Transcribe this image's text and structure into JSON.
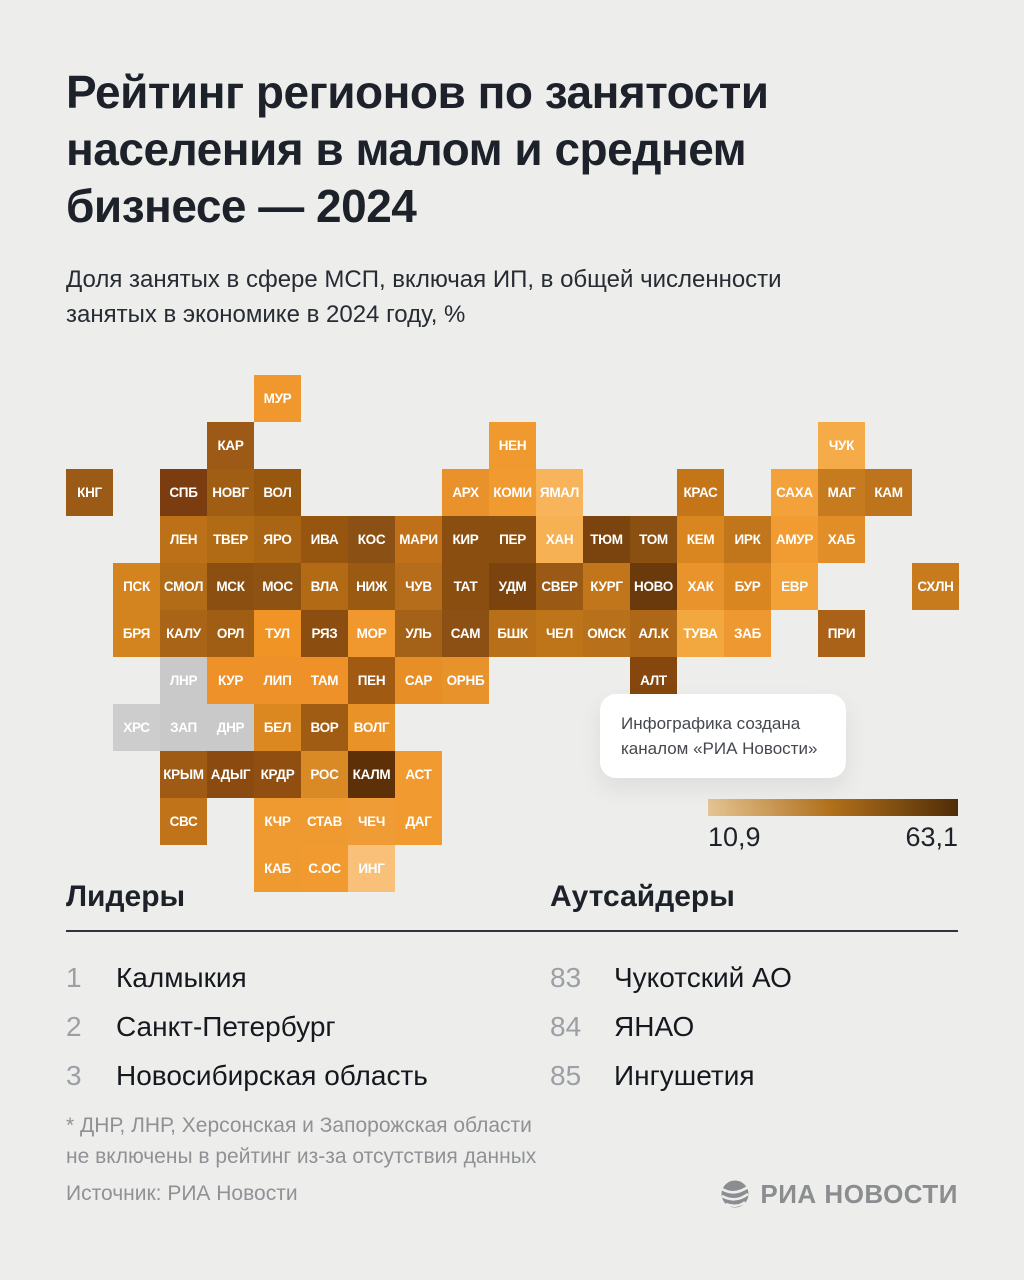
{
  "title_lines": [
    "Рейтинг регионов по занятости",
    "населения в малом и среднем",
    "бизнесе — 2024"
  ],
  "subtitle_lines": [
    "Доля занятых в сфере МСП, включая ИП, в общей численности",
    "занятых в экономике в 2024 году, %"
  ],
  "callout": {
    "text": "Инфографика создана каналом «РИА Новости»"
  },
  "legend": {
    "min_label": "10,9",
    "max_label": "63,1",
    "gradient_from": "#E4C493",
    "gradient_mid": "#B06F1A",
    "gradient_to": "#4F2D08"
  },
  "leaders": {
    "heading": "Лидеры",
    "items": [
      {
        "rank": "1",
        "name": "Калмыкия"
      },
      {
        "rank": "2",
        "name": "Санкт-Петербург"
      },
      {
        "rank": "3",
        "name": "Новосибирская область"
      }
    ]
  },
  "outsiders": {
    "heading": "Аутсайдеры",
    "items": [
      {
        "rank": "83",
        "name": "Чукотский АО"
      },
      {
        "rank": "84",
        "name": "ЯНАО"
      },
      {
        "rank": "85",
        "name": "Ингушетия"
      }
    ]
  },
  "footnote": "* ДНР, ЛНР, Херсонская и Запорожская области\nне включены в рейтинг из-за отсутствия данных",
  "source": "Источник: РИА Новости",
  "logo_text": "РИА НОВОСТИ",
  "chart_data": {
    "type": "heatmap",
    "title": "Рейтинг регионов по занятости населения в малом и среднем бизнесе — 2024",
    "unit": "%",
    "value_range": [
      10.9,
      63.1
    ],
    "legend_position": "right-middle",
    "excluded_regions": [
      "ДНР",
      "ЛНР",
      "ХРС",
      "ЗАП"
    ],
    "excluded_color": "#C9C9C9",
    "tiles": [
      {
        "label": "МУР",
        "row": 0,
        "col": 4,
        "color": "#F0982E"
      },
      {
        "label": "КАР",
        "row": 1,
        "col": 3,
        "color": "#9C5A16"
      },
      {
        "label": "НЕН",
        "row": 1,
        "col": 9,
        "color": "#F0992E"
      },
      {
        "label": "ЧУК",
        "row": 1,
        "col": 16,
        "color": "#F5AC48"
      },
      {
        "label": "КНГ",
        "row": 2,
        "col": 0,
        "color": "#9B5B17"
      },
      {
        "label": "СПБ",
        "row": 2,
        "col": 2,
        "color": "#7B3D10"
      },
      {
        "label": "НОВГ",
        "row": 2,
        "col": 3,
        "color": "#A05E14"
      },
      {
        "label": "ВОЛ",
        "row": 2,
        "col": 4,
        "color": "#97570F"
      },
      {
        "label": "АРХ",
        "row": 2,
        "col": 8,
        "color": "#E9922C"
      },
      {
        "label": "КОМИ",
        "row": 2,
        "col": 9,
        "color": "#F09A30"
      },
      {
        "label": "ЯМАЛ",
        "row": 2,
        "col": 10,
        "color": "#F7B45B"
      },
      {
        "label": "КРАС",
        "row": 2,
        "col": 13,
        "color": "#C47518"
      },
      {
        "label": "САХА",
        "row": 2,
        "col": 15,
        "color": "#F2A13B"
      },
      {
        "label": "МАГ",
        "row": 2,
        "col": 16,
        "color": "#C67B1E"
      },
      {
        "label": "КАМ",
        "row": 2,
        "col": 17,
        "color": "#BE741C"
      },
      {
        "label": "ЛЕН",
        "row": 3,
        "col": 2,
        "color": "#BC7018"
      },
      {
        "label": "ТВЕР",
        "row": 3,
        "col": 3,
        "color": "#B26B15"
      },
      {
        "label": "ЯРО",
        "row": 3,
        "col": 4,
        "color": "#A96414"
      },
      {
        "label": "ИВА",
        "row": 3,
        "col": 5,
        "color": "#96560F"
      },
      {
        "label": "КОС",
        "row": 3,
        "col": 6,
        "color": "#8B5013"
      },
      {
        "label": "МАРИ",
        "row": 3,
        "col": 7,
        "color": "#C07018"
      },
      {
        "label": "КИР",
        "row": 3,
        "col": 8,
        "color": "#8A4E10"
      },
      {
        "label": "ПЕР",
        "row": 3,
        "col": 9,
        "color": "#8A4E10"
      },
      {
        "label": "ХАН",
        "row": 3,
        "col": 10,
        "color": "#F7B155"
      },
      {
        "label": "ТЮМ",
        "row": 3,
        "col": 11,
        "color": "#7B440E"
      },
      {
        "label": "ТОМ",
        "row": 3,
        "col": 12,
        "color": "#8A5012"
      },
      {
        "label": "КЕМ",
        "row": 3,
        "col": 13,
        "color": "#D98621"
      },
      {
        "label": "ИРК",
        "row": 3,
        "col": 14,
        "color": "#C2761B"
      },
      {
        "label": "АМУР",
        "row": 3,
        "col": 15,
        "color": "#F09C33"
      },
      {
        "label": "ХАБ",
        "row": 3,
        "col": 16,
        "color": "#E18E28"
      },
      {
        "label": "ПСК",
        "row": 4,
        "col": 1,
        "color": "#D4841F"
      },
      {
        "label": "СМОЛ",
        "row": 4,
        "col": 2,
        "color": "#B26C18"
      },
      {
        "label": "МСК",
        "row": 4,
        "col": 3,
        "color": "#8B5011"
      },
      {
        "label": "МОС",
        "row": 4,
        "col": 4,
        "color": "#8E5212"
      },
      {
        "label": "ВЛА",
        "row": 4,
        "col": 5,
        "color": "#B26A15"
      },
      {
        "label": "НИЖ",
        "row": 4,
        "col": 6,
        "color": "#9B5A12"
      },
      {
        "label": "ЧУВ",
        "row": 4,
        "col": 7,
        "color": "#B56C1B"
      },
      {
        "label": "ТАТ",
        "row": 4,
        "col": 8,
        "color": "#8A4E10"
      },
      {
        "label": "УДМ",
        "row": 4,
        "col": 9,
        "color": "#7B440E"
      },
      {
        "label": "СВЕР",
        "row": 4,
        "col": 10,
        "color": "#9A5914"
      },
      {
        "label": "КУРГ",
        "row": 4,
        "col": 11,
        "color": "#C1761B"
      },
      {
        "label": "НОВО",
        "row": 4,
        "col": 12,
        "color": "#6B3A0C"
      },
      {
        "label": "ХАК",
        "row": 4,
        "col": 13,
        "color": "#E8932B"
      },
      {
        "label": "БУР",
        "row": 4,
        "col": 14,
        "color": "#D98621"
      },
      {
        "label": "ЕВР",
        "row": 4,
        "col": 15,
        "color": "#F2A237"
      },
      {
        "label": "СХЛН",
        "row": 4,
        "col": 18,
        "color": "#C77B1D"
      },
      {
        "label": "БРЯ",
        "row": 5,
        "col": 1,
        "color": "#D4841F"
      },
      {
        "label": "КАЛУ",
        "row": 5,
        "col": 2,
        "color": "#A96417"
      },
      {
        "label": "ОРЛ",
        "row": 5,
        "col": 3,
        "color": "#A05E14"
      },
      {
        "label": "ТУЛ",
        "row": 5,
        "col": 4,
        "color": "#F09525"
      },
      {
        "label": "РЯЗ",
        "row": 5,
        "col": 5,
        "color": "#8B4D10"
      },
      {
        "label": "МОР",
        "row": 5,
        "col": 6,
        "color": "#F0982E"
      },
      {
        "label": "УЛЬ",
        "row": 5,
        "col": 7,
        "color": "#A46118"
      },
      {
        "label": "САМ",
        "row": 5,
        "col": 8,
        "color": "#8C5014"
      },
      {
        "label": "БШК",
        "row": 5,
        "col": 9,
        "color": "#B77019"
      },
      {
        "label": "ЧЕЛ",
        "row": 5,
        "col": 10,
        "color": "#BE7419"
      },
      {
        "label": "ОМСК",
        "row": 5,
        "col": 11,
        "color": "#B8701B"
      },
      {
        "label": "АЛ.К",
        "row": 5,
        "col": 12,
        "color": "#AD6717"
      },
      {
        "label": "ТУВА",
        "row": 5,
        "col": 13,
        "color": "#F2A83E"
      },
      {
        "label": "ЗАБ",
        "row": 5,
        "col": 14,
        "color": "#ED9830"
      },
      {
        "label": "ПРИ",
        "row": 5,
        "col": 16,
        "color": "#A96218"
      },
      {
        "label": "ЛНР",
        "row": 6,
        "col": 2,
        "color": "#C9C9C9"
      },
      {
        "label": "КУР",
        "row": 6,
        "col": 3,
        "color": "#EE9128"
      },
      {
        "label": "ЛИП",
        "row": 6,
        "col": 4,
        "color": "#EE9128"
      },
      {
        "label": "ТАМ",
        "row": 6,
        "col": 5,
        "color": "#EE9128"
      },
      {
        "label": "ПЕН",
        "row": 6,
        "col": 6,
        "color": "#A05A12"
      },
      {
        "label": "САР",
        "row": 6,
        "col": 7,
        "color": "#E88E26"
      },
      {
        "label": "ОРНБ",
        "row": 6,
        "col": 8,
        "color": "#E8922B"
      },
      {
        "label": "АЛТ",
        "row": 6,
        "col": 12,
        "color": "#86470E"
      },
      {
        "label": "ХРС",
        "row": 7,
        "col": 1,
        "color": "#CDCDCD"
      },
      {
        "label": "ЗАП",
        "row": 7,
        "col": 2,
        "color": "#C9C9C9"
      },
      {
        "label": "ДНР",
        "row": 7,
        "col": 3,
        "color": "#C9C9C9"
      },
      {
        "label": "БЕЛ",
        "row": 7,
        "col": 4,
        "color": "#DC8820"
      },
      {
        "label": "ВОР",
        "row": 7,
        "col": 5,
        "color": "#A05C12"
      },
      {
        "label": "ВОЛГ",
        "row": 7,
        "col": 6,
        "color": "#E99228"
      },
      {
        "label": "КРЫМ",
        "row": 8,
        "col": 2,
        "color": "#9F5A14"
      },
      {
        "label": "АДЫГ",
        "row": 8,
        "col": 3,
        "color": "#8A4A10"
      },
      {
        "label": "КРДР",
        "row": 8,
        "col": 4,
        "color": "#904E10"
      },
      {
        "label": "РОС",
        "row": 8,
        "col": 5,
        "color": "#D98A24"
      },
      {
        "label": "КАЛМ",
        "row": 8,
        "col": 6,
        "color": "#5E3008"
      },
      {
        "label": "АСТ",
        "row": 8,
        "col": 7,
        "color": "#F09A30"
      },
      {
        "label": "СВС",
        "row": 9,
        "col": 2,
        "color": "#C07318"
      },
      {
        "label": "КЧР",
        "row": 9,
        "col": 4,
        "color": "#EF9A30"
      },
      {
        "label": "СТАВ",
        "row": 9,
        "col": 5,
        "color": "#EF9A30"
      },
      {
        "label": "ЧЕЧ",
        "row": 9,
        "col": 6,
        "color": "#F09C36"
      },
      {
        "label": "ДАГ",
        "row": 9,
        "col": 7,
        "color": "#F09A30"
      },
      {
        "label": "КАБ",
        "row": 10,
        "col": 4,
        "color": "#EF9A30"
      },
      {
        "label": "С.ОС",
        "row": 10,
        "col": 5,
        "color": "#F09A30"
      },
      {
        "label": "ИНГ",
        "row": 10,
        "col": 6,
        "color": "#F8C078"
      }
    ]
  }
}
